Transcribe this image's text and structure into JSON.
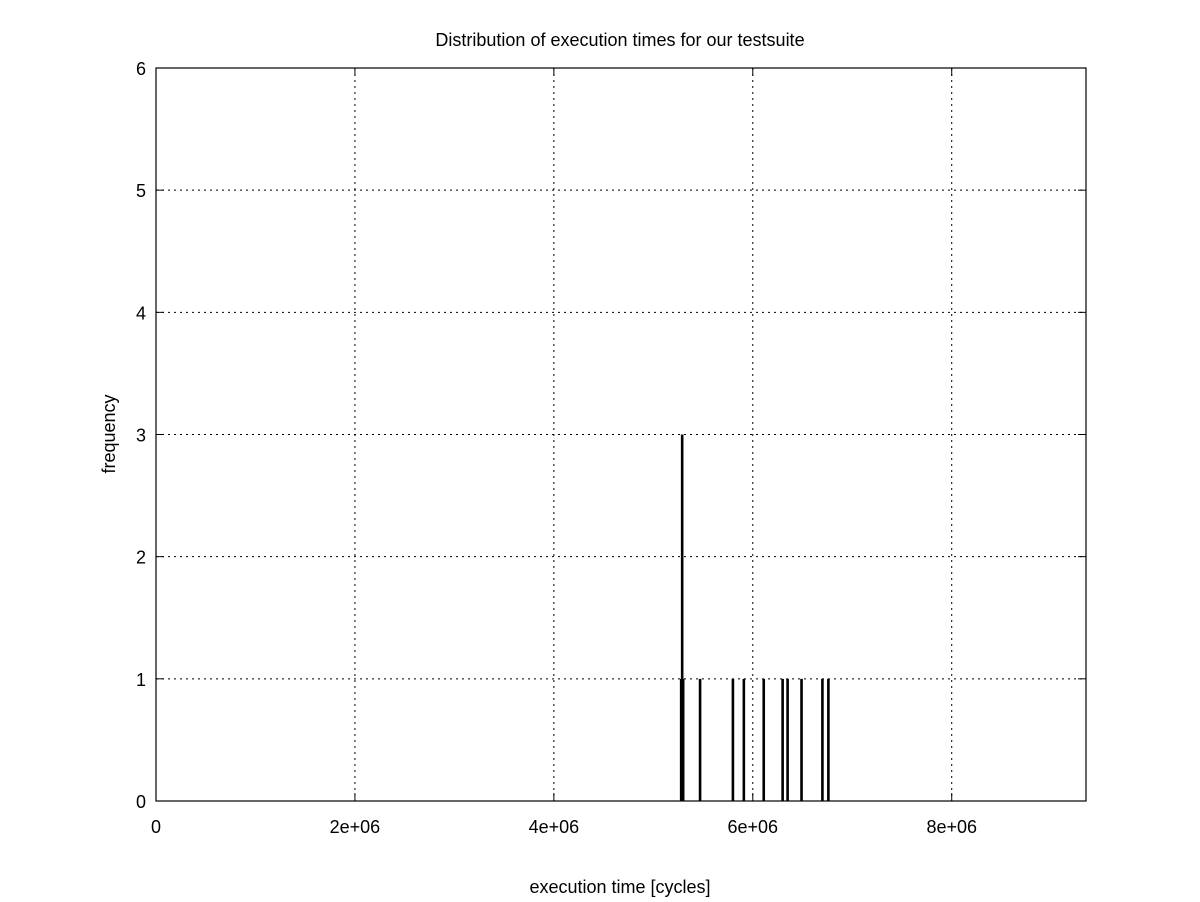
{
  "chart_data": {
    "type": "bar",
    "title": "Distribution of execution times for our testsuite",
    "xlabel": "execution time [cycles]",
    "ylabel": "frequency",
    "xlim": [
      0,
      9350000
    ],
    "ylim": [
      0,
      6
    ],
    "grid": true,
    "x_ticks": [
      0,
      2000000,
      4000000,
      6000000,
      8000000
    ],
    "x_tick_labels": [
      "0",
      "2e+06",
      "4e+06",
      "6e+06",
      "8e+06"
    ],
    "y_ticks": [
      0,
      1,
      2,
      3,
      4,
      5,
      6
    ],
    "y_tick_labels": [
      "0",
      "1",
      "2",
      "3",
      "4",
      "5",
      "6"
    ],
    "points": [
      {
        "x": 5280000,
        "y": 1
      },
      {
        "x": 5290000,
        "y": 3
      },
      {
        "x": 5300000,
        "y": 1
      },
      {
        "x": 5470000,
        "y": 1
      },
      {
        "x": 5800000,
        "y": 1
      },
      {
        "x": 5910000,
        "y": 1
      },
      {
        "x": 6110000,
        "y": 1
      },
      {
        "x": 6300000,
        "y": 1
      },
      {
        "x": 6350000,
        "y": 1
      },
      {
        "x": 6490000,
        "y": 1
      },
      {
        "x": 6700000,
        "y": 1
      },
      {
        "x": 6760000,
        "y": 1
      }
    ],
    "colors": {
      "bars": "#000000",
      "grid": "#000000",
      "axes": "#000000"
    }
  }
}
